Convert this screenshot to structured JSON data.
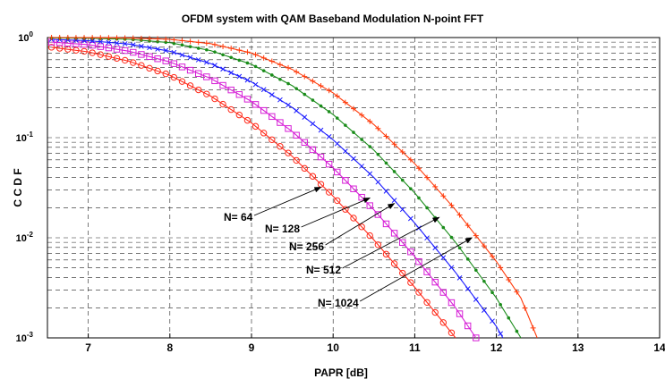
{
  "chart_data": {
    "type": "line",
    "title": "OFDM system with QAM Baseband Modulation N-point FFT",
    "xlabel": "PAPR [dB]",
    "ylabel": "C C D F",
    "xlim": [
      6.5,
      14
    ],
    "ylim": [
      0.001,
      1
    ],
    "yscale": "log",
    "xticks": [
      "7",
      "8",
      "9",
      "10",
      "11",
      "12",
      "13",
      "14"
    ],
    "yticks": [
      {
        "base": "10",
        "exp": "0",
        "value": 1
      },
      {
        "base": "10",
        "exp": "-1",
        "value": 0.1
      },
      {
        "base": "10",
        "exp": "-2",
        "value": 0.01
      },
      {
        "base": "10",
        "exp": "-3",
        "value": 0.001
      }
    ],
    "grid": true,
    "series": [
      {
        "name": "N= 64",
        "color": "#ff2a1a",
        "marker": "circle",
        "points": [
          [
            6.55,
            0.8
          ],
          [
            7.0,
            0.72
          ],
          [
            7.5,
            0.58
          ],
          [
            8.0,
            0.42
          ],
          [
            8.5,
            0.26
          ],
          [
            9.0,
            0.14
          ],
          [
            9.5,
            0.065
          ],
          [
            10.0,
            0.026
          ],
          [
            10.5,
            0.0095
          ],
          [
            11.0,
            0.0032
          ],
          [
            11.3,
            0.0016
          ],
          [
            11.5,
            0.001
          ]
        ]
      },
      {
        "name": "N= 128",
        "color": "#d61ed6",
        "marker": "square",
        "points": [
          [
            6.55,
            0.9
          ],
          [
            7.0,
            0.85
          ],
          [
            7.5,
            0.73
          ],
          [
            8.0,
            0.57
          ],
          [
            8.5,
            0.39
          ],
          [
            9.0,
            0.23
          ],
          [
            9.5,
            0.115
          ],
          [
            10.0,
            0.05
          ],
          [
            10.5,
            0.019
          ],
          [
            11.0,
            0.0065
          ],
          [
            11.5,
            0.002
          ],
          [
            11.75,
            0.001
          ]
        ]
      },
      {
        "name": "N= 256",
        "color": "#1a1aff",
        "marker": "x",
        "points": [
          [
            6.55,
            0.96
          ],
          [
            7.0,
            0.93
          ],
          [
            7.5,
            0.86
          ],
          [
            8.0,
            0.73
          ],
          [
            8.5,
            0.55
          ],
          [
            9.0,
            0.36
          ],
          [
            9.5,
            0.2
          ],
          [
            10.0,
            0.095
          ],
          [
            10.5,
            0.04
          ],
          [
            11.0,
            0.014
          ],
          [
            11.5,
            0.0045
          ],
          [
            12.0,
            0.0013
          ],
          [
            12.08,
            0.001
          ]
        ]
      },
      {
        "name": "N= 512",
        "color": "#1a8c1a",
        "marker": "dot",
        "points": [
          [
            6.55,
            0.99
          ],
          [
            7.0,
            0.985
          ],
          [
            7.5,
            0.96
          ],
          [
            8.0,
            0.89
          ],
          [
            8.5,
            0.74
          ],
          [
            9.0,
            0.54
          ],
          [
            9.5,
            0.33
          ],
          [
            10.0,
            0.17
          ],
          [
            10.5,
            0.075
          ],
          [
            11.0,
            0.028
          ],
          [
            11.5,
            0.009
          ],
          [
            12.0,
            0.0025
          ],
          [
            12.3,
            0.001
          ]
        ]
      },
      {
        "name": "N= 1024",
        "color": "#ff3a0a",
        "marker": "plus",
        "points": [
          [
            6.55,
            1.0
          ],
          [
            7.0,
            0.998
          ],
          [
            7.5,
            0.99
          ],
          [
            8.0,
            0.96
          ],
          [
            8.5,
            0.87
          ],
          [
            9.0,
            0.7
          ],
          [
            9.5,
            0.48
          ],
          [
            10.0,
            0.28
          ],
          [
            10.5,
            0.135
          ],
          [
            11.0,
            0.055
          ],
          [
            11.5,
            0.019
          ],
          [
            12.0,
            0.0058
          ],
          [
            12.3,
            0.0025
          ],
          [
            12.5,
            0.001
          ]
        ]
      }
    ],
    "annotations": [
      {
        "text": "N= 64",
        "series": "N= 64",
        "arrow_to": [
          9.85,
          0.032
        ]
      },
      {
        "text": "N= 128",
        "series": "N= 128",
        "arrow_to": [
          10.45,
          0.025
        ]
      },
      {
        "text": "N= 256",
        "series": "N= 256",
        "arrow_to": [
          10.75,
          0.022
        ]
      },
      {
        "text": "N= 512",
        "series": "N= 512",
        "arrow_to": [
          11.3,
          0.016
        ]
      },
      {
        "text": "N= 1024",
        "series": "N= 1024",
        "arrow_to": [
          11.7,
          0.01
        ]
      }
    ]
  }
}
